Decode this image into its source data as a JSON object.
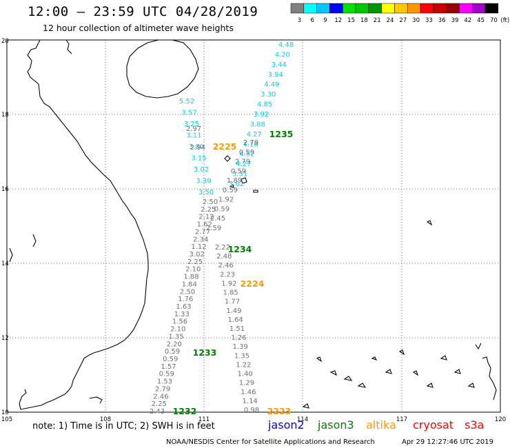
{
  "title": "12:00 – 23:59 UTC 04/28/2019",
  "subtitle": "12 hour collection of altimeter wave heights",
  "colorbar": {
    "unit": "(ft)",
    "labels": [
      "3",
      "6",
      "9",
      "12",
      "15",
      "18",
      "21",
      "24",
      "27",
      "30",
      "33",
      "36",
      "39",
      "42",
      "45",
      "70"
    ],
    "colors": [
      "#808080",
      "#00ffff",
      "#00c8ff",
      "#0000ff",
      "#00e100",
      "#00c800",
      "#009600",
      "#ffff00",
      "#ffc800",
      "#ff9600",
      "#ff0000",
      "#c80000",
      "#960000",
      "#ff00ff",
      "#a000c8",
      "#000000"
    ]
  },
  "map": {
    "lon_ticks": [
      "105",
      "108",
      "111",
      "114",
      "117",
      "120"
    ],
    "lat_ticks": [
      "20",
      "18",
      "16",
      "14",
      "12",
      "10"
    ]
  },
  "passes": [
    {
      "label": "1235",
      "color": "#008000"
    },
    {
      "label": "2225",
      "color": "#ff9900"
    },
    {
      "label": "1234",
      "color": "#008000"
    },
    {
      "label": "2224",
      "color": "#ff9900"
    },
    {
      "label": "1233",
      "color": "#008000"
    },
    {
      "label": "1232",
      "color": "#008000"
    },
    {
      "label": "2223",
      "color": "#ff9900"
    }
  ],
  "track_cyan_north": [
    "4.48",
    "4.20",
    "3.44",
    "3.94",
    "4.49",
    "3.30",
    "4.85",
    "3.92",
    "3.88",
    "4.27",
    "4.18",
    "4.52",
    "4.27",
    "3.31",
    "3.62"
  ],
  "track_grey_north": [
    "2.79",
    "0.59",
    "2.79",
    "0.59",
    "1.89",
    "0.59",
    "1.92",
    "0.59",
    "2.45",
    "2.59"
  ],
  "track_cyan_left": [
    "5.52",
    "3.57",
    "3.25",
    "3.11",
    "3.80",
    "3.15",
    "3.02",
    "3.39",
    "3.50"
  ],
  "track_grey_left_top": [
    "2.97",
    "2.94"
  ],
  "track_left_mid": [
    "2.50",
    "2.25",
    "2.12",
    "1.62",
    "2.77",
    "2.34",
    "1.12",
    "3.02",
    "2.25",
    "2.10",
    "1.88",
    "1.84",
    "2.50",
    "1.76",
    "1.63",
    "1.33",
    "1.56",
    "2.10",
    "1.35",
    "2.20",
    "0.59",
    "0.59",
    "1.57",
    "0.59",
    "1.53",
    "2.79",
    "2.46",
    "2.25",
    "2.43"
  ],
  "track_mid_right": [
    "2.22",
    "2.48",
    "2.46",
    "2.23",
    "1.92",
    "1.85",
    "1.77",
    "1.49",
    "1.64",
    "1.51",
    "1.26",
    "1.39",
    "1.35",
    "1.22",
    "1.40",
    "1.29",
    "1.46",
    "1.14",
    "0.98"
  ],
  "note": "note: 1) Time is in UTC; 2) SWH is in feet",
  "satellites": [
    {
      "name": "jason2",
      "color": "#0000ff"
    },
    {
      "name": "jason3",
      "color": "#008000"
    },
    {
      "name": "altika",
      "color": "#ff9900"
    },
    {
      "name": "cryosat",
      "color": "#ff0000"
    },
    {
      "name": "s3a",
      "color": "#ff0000"
    }
  ],
  "footer_left": "NOAA/NESDIS Center for Satellite Applications and Research",
  "footer_right": "Apr 29 12:27:46 UTC 2019"
}
